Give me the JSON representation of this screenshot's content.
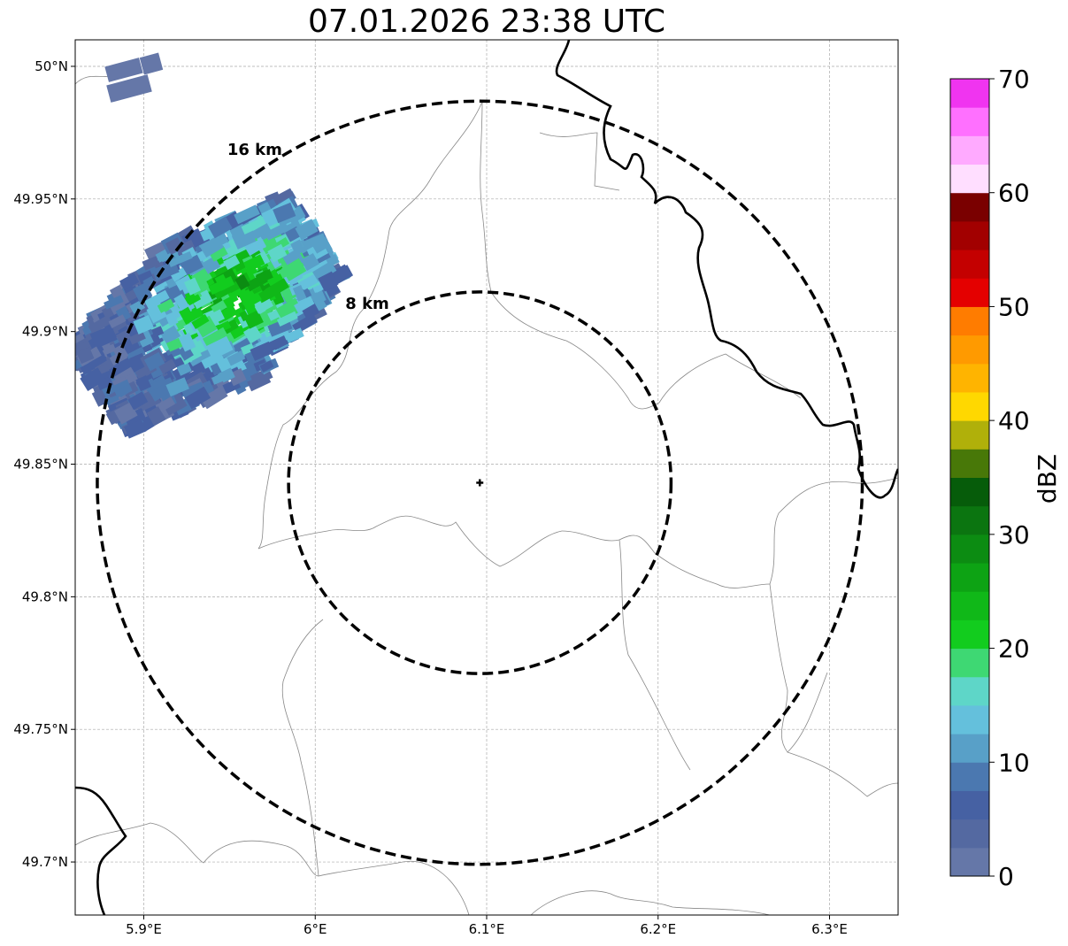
{
  "title": "07.01.2026 23:38 UTC",
  "map": {
    "extent": {
      "lon_min": 5.86,
      "lon_max": 6.34,
      "lat_min": 49.68,
      "lat_max": 50.01
    },
    "radar_site": {
      "lon": 6.096,
      "lat": 49.843
    },
    "rings": [
      {
        "label": "8 km",
        "radius_km": 8
      },
      {
        "label": "16 km",
        "radius_km": 16
      }
    ],
    "x_ticks": [
      {
        "lon": 5.9,
        "label": "5.9°E"
      },
      {
        "lon": 6.0,
        "label": "6°E"
      },
      {
        "lon": 6.1,
        "label": "6.1°E"
      },
      {
        "lon": 6.2,
        "label": "6.2°E"
      },
      {
        "lon": 6.3,
        "label": "6.3°E"
      }
    ],
    "y_ticks": [
      {
        "lat": 50.0,
        "label": "50°N"
      },
      {
        "lat": 49.95,
        "label": "49.95°N"
      },
      {
        "lat": 49.9,
        "label": "49.9°N"
      },
      {
        "lat": 49.85,
        "label": "49.85°N"
      },
      {
        "lat": 49.8,
        "label": "49.8°N"
      },
      {
        "lat": 49.75,
        "label": "49.75°N"
      },
      {
        "lat": 49.7,
        "label": "49.7°N"
      }
    ]
  },
  "colorbar": {
    "label": "dBZ",
    "min": 0,
    "max": 70,
    "step": 2.5,
    "ticks": [
      "0",
      "10",
      "20",
      "30",
      "40",
      "50",
      "60",
      "70"
    ],
    "colors": [
      "#6577a8",
      "#5469a1",
      "#4661a3",
      "#4b78b0",
      "#58a0c8",
      "#64c0dc",
      "#5ed6c8",
      "#3ed873",
      "#12cc1e",
      "#10b818",
      "#0da314",
      "#0c8c12",
      "#0b7510",
      "#065c0a",
      "#487808",
      "#b0b00a",
      "#ffd800",
      "#ffb400",
      "#ff9a00",
      "#ff7c00",
      "#e40000",
      "#c40000",
      "#a20000",
      "#7a0000",
      "#ffdeff",
      "#ffaaff",
      "#ff70ff",
      "#f034f0"
    ]
  }
}
